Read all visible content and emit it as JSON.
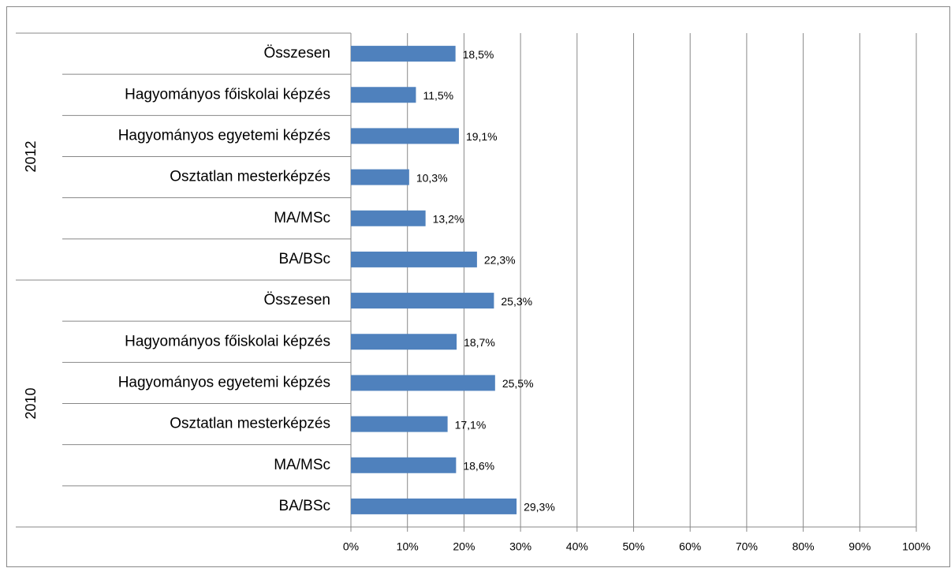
{
  "chart_data": {
    "type": "bar",
    "color": "#4f81bd",
    "groups": [
      {
        "name": "2012",
        "categories": [
          "Összesen",
          "Hagyományos főiskolai képzés",
          "Hagyományos egyetemi képzés",
          "Osztatlan mesterképzés",
          "MA/MSc",
          "BA/BSc"
        ],
        "values": [
          18.5,
          11.5,
          19.1,
          10.3,
          13.2,
          22.3
        ],
        "value_labels": [
          "18,5%",
          "11,5%",
          "19,1%",
          "10,3%",
          "13,2%",
          "22,3%"
        ]
      },
      {
        "name": "2010",
        "categories": [
          "Összesen",
          "Hagyományos főiskolai képzés",
          "Hagyományos egyetemi képzés",
          "Osztatlan mesterképzés",
          "MA/MSc",
          "BA/BSc"
        ],
        "values": [
          25.3,
          18.7,
          25.5,
          17.1,
          18.6,
          29.3
        ],
        "value_labels": [
          "25,3%",
          "18,7%",
          "25,5%",
          "17,1%",
          "18,6%",
          "29,3%"
        ]
      }
    ],
    "xlim": [
      0,
      100
    ],
    "xticks": [
      {
        "value": 0,
        "label": "0%"
      },
      {
        "value": 10,
        "label": "10%"
      },
      {
        "value": 20,
        "label": "20%"
      },
      {
        "value": 30,
        "label": "30%"
      },
      {
        "value": 40,
        "label": "40%"
      },
      {
        "value": 50,
        "label": "50%"
      },
      {
        "value": 60,
        "label": "60%"
      },
      {
        "value": 70,
        "label": "70%"
      },
      {
        "value": 80,
        "label": "80%"
      },
      {
        "value": 90,
        "label": "90%"
      },
      {
        "value": 100,
        "label": "100%"
      }
    ],
    "grid": true
  }
}
